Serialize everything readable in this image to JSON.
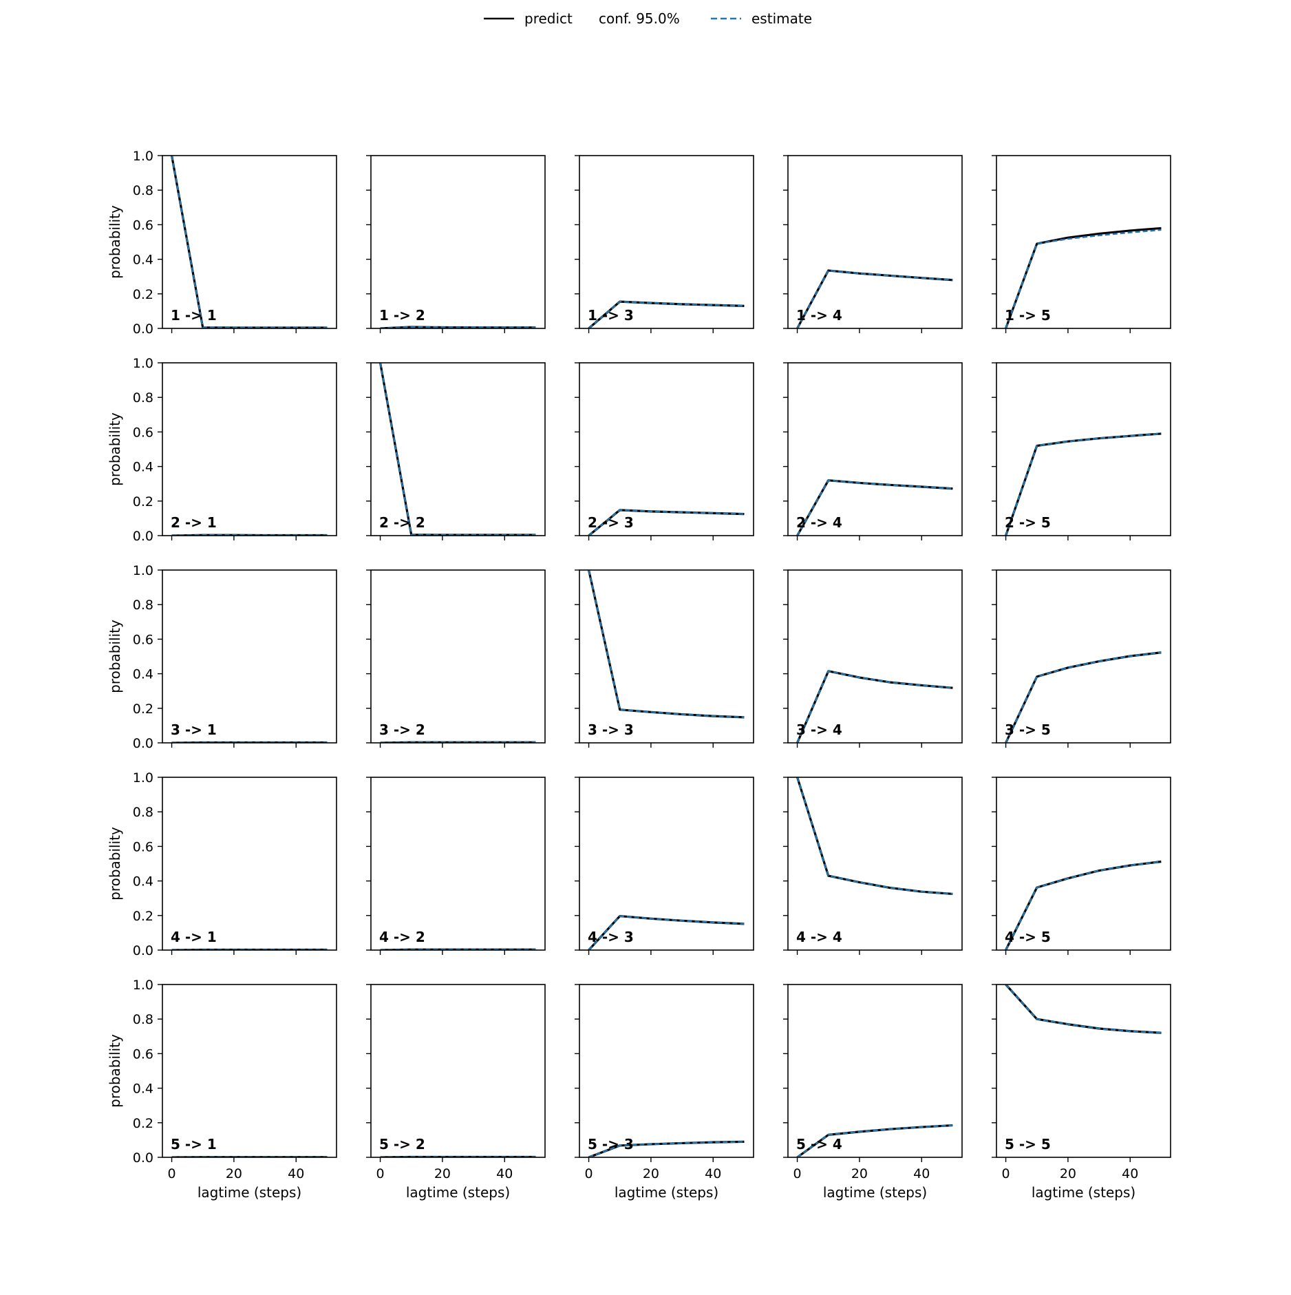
{
  "legend": {
    "items": [
      {
        "label": "predict",
        "style": "solid",
        "color": "#000000"
      },
      {
        "label": "conf. 95.0%",
        "style": "band",
        "color": "#000000"
      },
      {
        "label": "estimate",
        "style": "dashed",
        "color": "#1f77b4"
      }
    ],
    "placement": "top-center"
  },
  "chart_data": {
    "type": "line",
    "layout": "5x5 grid",
    "xlabel": "lagtime (steps)",
    "ylabel": "probability",
    "xlim": [
      -3,
      53
    ],
    "ylim": [
      0,
      1
    ],
    "xticks": [
      0,
      20,
      40
    ],
    "xtick_labels": [
      "0",
      "20",
      "40"
    ],
    "yticks": [
      0,
      0.2,
      0.4,
      0.6,
      0.8,
      1.0
    ],
    "ytick_labels": [
      "0.0",
      "0.2",
      "0.4",
      "0.6",
      "0.8",
      "1.0"
    ],
    "grid": false,
    "x": [
      0,
      10,
      20,
      30,
      40,
      50
    ],
    "series_names": [
      "predict",
      "estimate"
    ],
    "series_colors": {
      "predict": "#000000",
      "estimate": "#1f77b4"
    },
    "panels": [
      {
        "label": "1 -> 1",
        "predict": [
          1.0,
          0.005,
          0.004,
          0.004,
          0.004,
          0.004
        ],
        "estimate": [
          1.0,
          0.005,
          0.004,
          0.004,
          0.004,
          0.004
        ]
      },
      {
        "label": "1 -> 2",
        "predict": [
          0.0,
          0.008,
          0.006,
          0.005,
          0.005,
          0.005
        ],
        "estimate": [
          0.0,
          0.008,
          0.006,
          0.005,
          0.005,
          0.005
        ]
      },
      {
        "label": "1 -> 3",
        "predict": [
          0.0,
          0.155,
          0.147,
          0.14,
          0.135,
          0.13
        ],
        "estimate": [
          0.0,
          0.155,
          0.147,
          0.14,
          0.135,
          0.13
        ]
      },
      {
        "label": "1 -> 4",
        "predict": [
          0.0,
          0.335,
          0.318,
          0.305,
          0.292,
          0.28
        ],
        "estimate": [
          0.0,
          0.335,
          0.318,
          0.305,
          0.292,
          0.28
        ]
      },
      {
        "label": "1 -> 5",
        "predict": [
          0.0,
          0.49,
          0.525,
          0.548,
          0.566,
          0.58
        ],
        "estimate": [
          0.0,
          0.49,
          0.518,
          0.538,
          0.555,
          0.57
        ]
      },
      {
        "label": "2 -> 1",
        "predict": [
          0.0,
          0.003,
          0.003,
          0.002,
          0.002,
          0.002
        ],
        "estimate": [
          0.0,
          0.003,
          0.003,
          0.002,
          0.002,
          0.002
        ]
      },
      {
        "label": "2 -> 2",
        "predict": [
          1.0,
          0.005,
          0.004,
          0.004,
          0.004,
          0.004
        ],
        "estimate": [
          1.0,
          0.005,
          0.004,
          0.004,
          0.004,
          0.004
        ]
      },
      {
        "label": "2 -> 3",
        "predict": [
          0.0,
          0.148,
          0.14,
          0.135,
          0.13,
          0.125
        ],
        "estimate": [
          0.0,
          0.148,
          0.14,
          0.135,
          0.13,
          0.125
        ]
      },
      {
        "label": "2 -> 4",
        "predict": [
          0.0,
          0.32,
          0.305,
          0.293,
          0.283,
          0.272
        ],
        "estimate": [
          0.0,
          0.32,
          0.305,
          0.293,
          0.283,
          0.272
        ]
      },
      {
        "label": "2 -> 5",
        "predict": [
          0.0,
          0.52,
          0.545,
          0.563,
          0.577,
          0.59
        ],
        "estimate": [
          0.0,
          0.52,
          0.545,
          0.563,
          0.577,
          0.59
        ]
      },
      {
        "label": "3 -> 1",
        "predict": [
          0.0,
          0.002,
          0.002,
          0.002,
          0.002,
          0.002
        ],
        "estimate": [
          0.0,
          0.002,
          0.002,
          0.002,
          0.002,
          0.002
        ]
      },
      {
        "label": "3 -> 2",
        "predict": [
          0.0,
          0.003,
          0.003,
          0.003,
          0.003,
          0.003
        ],
        "estimate": [
          0.0,
          0.003,
          0.003,
          0.003,
          0.003,
          0.003
        ]
      },
      {
        "label": "3 -> 3",
        "predict": [
          1.0,
          0.192,
          0.178,
          0.165,
          0.155,
          0.148
        ],
        "estimate": [
          1.0,
          0.192,
          0.178,
          0.165,
          0.155,
          0.148
        ]
      },
      {
        "label": "3 -> 4",
        "predict": [
          0.0,
          0.415,
          0.378,
          0.35,
          0.333,
          0.318
        ],
        "estimate": [
          0.0,
          0.415,
          0.378,
          0.35,
          0.333,
          0.318
        ]
      },
      {
        "label": "3 -> 5",
        "predict": [
          0.0,
          0.383,
          0.435,
          0.472,
          0.502,
          0.523
        ],
        "estimate": [
          0.0,
          0.383,
          0.435,
          0.472,
          0.502,
          0.523
        ]
      },
      {
        "label": "4 -> 1",
        "predict": [
          0.0,
          0.002,
          0.002,
          0.002,
          0.002,
          0.002
        ],
        "estimate": [
          0.0,
          0.002,
          0.002,
          0.002,
          0.002,
          0.002
        ]
      },
      {
        "label": "4 -> 2",
        "predict": [
          0.0,
          0.003,
          0.003,
          0.003,
          0.003,
          0.003
        ],
        "estimate": [
          0.0,
          0.003,
          0.003,
          0.003,
          0.003,
          0.003
        ]
      },
      {
        "label": "4 -> 3",
        "predict": [
          0.0,
          0.197,
          0.182,
          0.17,
          0.16,
          0.152
        ],
        "estimate": [
          0.0,
          0.197,
          0.182,
          0.17,
          0.16,
          0.152
        ]
      },
      {
        "label": "4 -> 4",
        "predict": [
          1.0,
          0.43,
          0.392,
          0.36,
          0.338,
          0.325
        ],
        "estimate": [
          1.0,
          0.43,
          0.392,
          0.36,
          0.338,
          0.325
        ]
      },
      {
        "label": "4 -> 5",
        "predict": [
          0.0,
          0.362,
          0.415,
          0.46,
          0.49,
          0.512
        ],
        "estimate": [
          0.0,
          0.362,
          0.415,
          0.46,
          0.49,
          0.512
        ]
      },
      {
        "label": "5 -> 1",
        "predict": [
          0.0,
          0.001,
          0.001,
          0.001,
          0.001,
          0.001
        ],
        "estimate": [
          0.0,
          0.001,
          0.001,
          0.001,
          0.001,
          0.001
        ]
      },
      {
        "label": "5 -> 2",
        "predict": [
          0.0,
          0.002,
          0.002,
          0.002,
          0.002,
          0.002
        ],
        "estimate": [
          0.0,
          0.002,
          0.002,
          0.002,
          0.002,
          0.002
        ]
      },
      {
        "label": "5 -> 3",
        "predict": [
          0.0,
          0.068,
          0.076,
          0.082,
          0.087,
          0.09
        ],
        "estimate": [
          0.0,
          0.068,
          0.076,
          0.082,
          0.087,
          0.09
        ]
      },
      {
        "label": "5 -> 4",
        "predict": [
          0.0,
          0.13,
          0.148,
          0.163,
          0.175,
          0.185
        ],
        "estimate": [
          0.0,
          0.13,
          0.148,
          0.163,
          0.175,
          0.185
        ]
      },
      {
        "label": "5 -> 5",
        "predict": [
          1.0,
          0.8,
          0.77,
          0.745,
          0.73,
          0.72
        ],
        "estimate": [
          1.0,
          0.8,
          0.77,
          0.745,
          0.73,
          0.72
        ]
      }
    ]
  }
}
